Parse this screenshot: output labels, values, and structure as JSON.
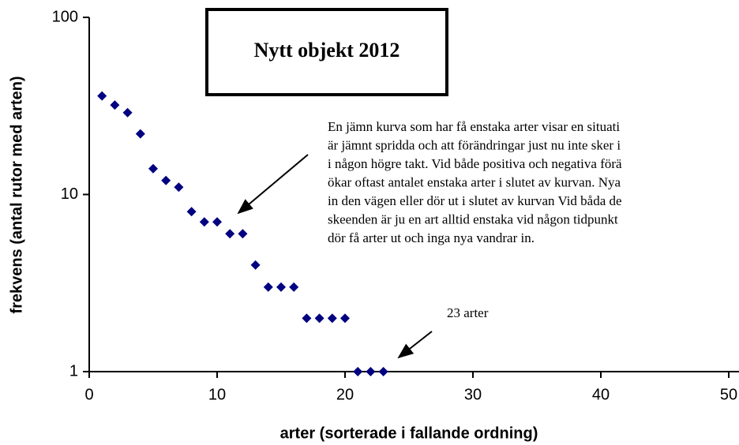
{
  "chart_data": {
    "type": "scatter",
    "title": "Nytt objekt 2012",
    "x_label": "arter (sorterade i fallande ordning)",
    "y_label": "frekvens (antal rutor med arten)",
    "x": [
      1,
      2,
      3,
      4,
      5,
      6,
      7,
      8,
      9,
      10,
      11,
      12,
      13,
      14,
      15,
      16,
      17,
      18,
      19,
      20,
      21,
      22,
      23
    ],
    "values": [
      36,
      32,
      29,
      22,
      14,
      12,
      11,
      8,
      7,
      7,
      6,
      6,
      4,
      3,
      3,
      3,
      2,
      2,
      2,
      2,
      1,
      1,
      1
    ],
    "color": "#000080",
    "xlim": [
      0,
      50
    ],
    "ylim": [
      1,
      100
    ],
    "xticks": [
      0,
      10,
      20,
      30,
      40,
      50
    ],
    "yticks": [
      1,
      10,
      100
    ],
    "y_log": true,
    "annotations": [
      {
        "lines": [
          "En jämn kurva som har få enstaka arter visar en situati",
          "är jämnt spridda och att förändringar just nu inte sker i",
          "i någon högre takt. Vid både positiva och negativa förä",
          "ökar oftast antalet enstaka arter i slutet av kurvan. Nya",
          "in den vägen eller dör ut i slutet av kurvan Vid båda de",
          "skeenden är ju en art alltid enstaka vid någon tidpunkt",
          "dör få arter ut och inga nya vandrar in."
        ]
      },
      {
        "lines": [
          "23 arter"
        ]
      }
    ]
  }
}
